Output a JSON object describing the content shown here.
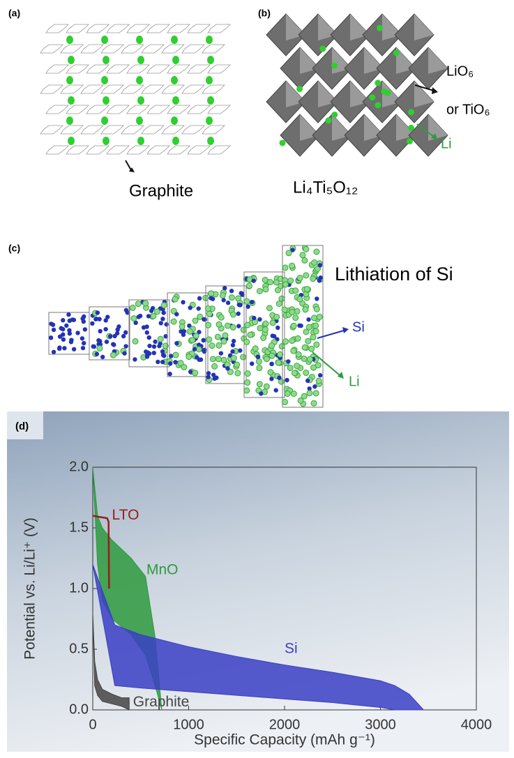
{
  "panels": {
    "a": {
      "label": "(a)",
      "caption": "Graphite"
    },
    "b": {
      "label": "(b)",
      "caption": "Li₄Ti₅O₁₂",
      "octahedra": "LiO₆",
      "octahedra2": "or TiO₆",
      "ion": "Li"
    },
    "c": {
      "label": "(c)",
      "caption": "Lithiation of Si",
      "host": "Si",
      "ion": "Li"
    }
  },
  "chart_data": {
    "type": "area",
    "panel_label": "(d)",
    "x_label": "Specific Capacity (mAh g⁻¹)",
    "y_label": "Potential vs. Li/Li⁺ (V)",
    "xlim": [
      0,
      4000
    ],
    "xticks": [
      0,
      1000,
      2000,
      3000,
      4000
    ],
    "ylim": [
      0,
      2.0
    ],
    "yticks": [
      {
        "value": 0,
        "label": "0.0"
      },
      0.5,
      {
        "value": 1,
        "label": "1.0"
      },
      1.5,
      {
        "value": 2,
        "label": "2.0"
      }
    ],
    "series": [
      {
        "name": "MnO",
        "color": "#2e9a3e",
        "x": [
          0,
          50,
          100,
          200,
          400,
          550,
          650,
          720
        ],
        "high": [
          2.0,
          1.6,
          1.5,
          1.4,
          1.25,
          1.1,
          0.6,
          0
        ],
        "low": [
          2.0,
          1.2,
          0.9,
          0.75,
          0.62,
          0.45,
          0.2,
          0
        ]
      },
      {
        "name": "Si",
        "color": "#3a3fc4",
        "x": [
          0,
          230,
          500,
          1000,
          1500,
          2000,
          2500,
          3000,
          3150,
          3300,
          3450
        ],
        "high": [
          1.2,
          0.7,
          0.62,
          0.52,
          0.44,
          0.37,
          0.31,
          0.24,
          0.2,
          0.13,
          0
        ],
        "low": [
          1.2,
          0.2,
          0.18,
          0.15,
          0.12,
          0.09,
          0.06,
          0.02,
          0,
          0,
          0
        ]
      },
      {
        "name": "Graphite",
        "color": "#444444",
        "x": [
          0,
          20,
          50,
          100,
          200,
          300,
          380
        ],
        "high": [
          0.8,
          0.4,
          0.25,
          0.17,
          0.13,
          0.1,
          0.1
        ],
        "low": [
          0.8,
          0.2,
          0.12,
          0.07,
          0.05,
          0.03,
          0
        ]
      },
      {
        "name": "LTO",
        "color": "#9b1c1c",
        "x": [
          0,
          150,
          165,
          170
        ],
        "values": [
          1.6,
          1.58,
          1.55,
          1.0
        ]
      }
    ]
  }
}
